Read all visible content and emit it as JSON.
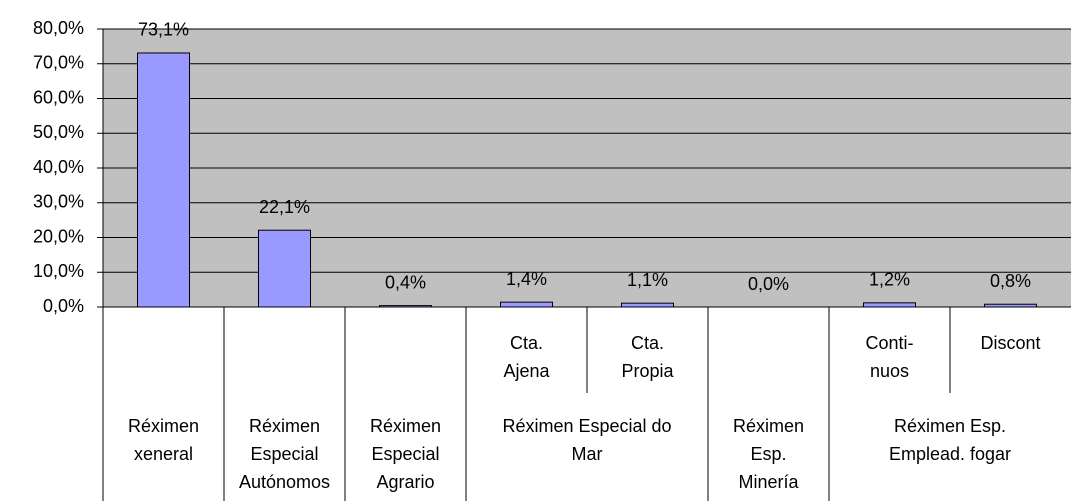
{
  "chart_data": {
    "type": "bar",
    "color": "#9999ff",
    "plot_background": "#c0c0c0",
    "grid": true,
    "categories": [
      null,
      null,
      null,
      "Cta.\nAjena",
      "Cta.\nPropia",
      null,
      "Conti-\nnuos",
      "Discont"
    ],
    "groups": [
      {
        "label": "Réximen\nxeneral",
        "span": 1
      },
      {
        "label": "Réximen\nEspecial\nAutónomos",
        "span": 1
      },
      {
        "label": "Réximen\nEspecial\nAgrario",
        "span": 1
      },
      {
        "label": "Réximen Especial do\nMar",
        "span": 2
      },
      {
        "label": "Réximen\nEsp.\nMinería",
        "span": 1
      },
      {
        "label": "Réximen Esp.\nEmplead. fogar",
        "span": 2
      }
    ],
    "values": [
      73.1,
      22.1,
      0.4,
      1.4,
      1.1,
      0.0,
      1.2,
      0.8
    ],
    "value_labels": [
      "73,1%",
      "22,1%",
      "0,4%",
      "1,4%",
      "1,1%",
      "0,0%",
      "1,2%",
      "0,8%"
    ],
    "ylim": [
      0,
      80
    ],
    "yticks": [
      {
        "value": 0,
        "label": "0,0%"
      },
      {
        "value": 10,
        "label": "10,0%"
      },
      {
        "value": 20,
        "label": "20,0%"
      },
      {
        "value": 30,
        "label": "30,0%"
      },
      {
        "value": 40,
        "label": "40,0%"
      },
      {
        "value": 50,
        "label": "50,0%"
      },
      {
        "value": 60,
        "label": "60,0%"
      },
      {
        "value": 70,
        "label": "70,0%"
      },
      {
        "value": 80,
        "label": "80,0%"
      }
    ]
  }
}
